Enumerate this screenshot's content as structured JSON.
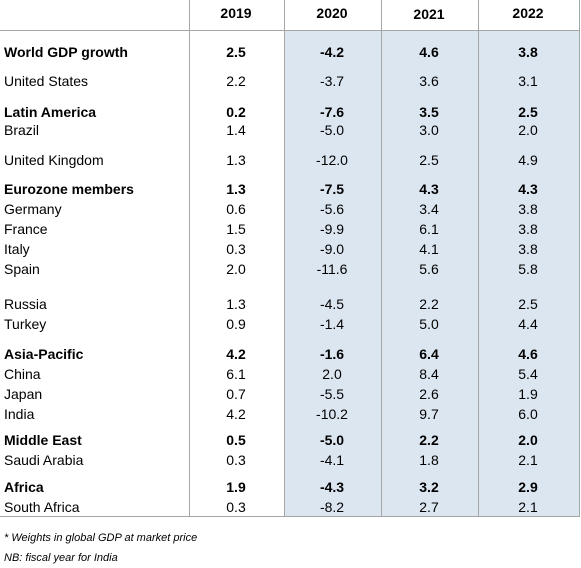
{
  "columns": [
    "2019",
    "2020",
    "2021",
    "2022"
  ],
  "rows": [
    {
      "label": "World GDP growth",
      "bold": true,
      "values": [
        "2.5",
        "-4.2",
        "4.6",
        "3.8"
      ]
    },
    {
      "label": "United States",
      "bold": false,
      "values": [
        "2.2",
        "-3.7",
        "3.6",
        "3.1"
      ]
    },
    {
      "label": "Latin America",
      "bold": true,
      "values": [
        "0.2",
        "-7.6",
        "3.5",
        "2.5"
      ]
    },
    {
      "label": "Brazil",
      "bold": false,
      "values": [
        "1.4",
        "-5.0",
        "3.0",
        "2.0"
      ]
    },
    {
      "label": "United Kingdom",
      "bold": false,
      "values": [
        "1.3",
        "-12.0",
        "2.5",
        "4.9"
      ]
    },
    {
      "label": "Eurozone members",
      "bold": true,
      "values": [
        "1.3",
        "-7.5",
        "4.3",
        "4.3"
      ]
    },
    {
      "label": "Germany",
      "bold": false,
      "values": [
        "0.6",
        "-5.6",
        "3.4",
        "3.8"
      ]
    },
    {
      "label": "France",
      "bold": false,
      "values": [
        "1.5",
        "-9.9",
        "6.1",
        "3.8"
      ]
    },
    {
      "label": "Italy",
      "bold": false,
      "values": [
        "0.3",
        "-9.0",
        "4.1",
        "3.8"
      ]
    },
    {
      "label": "Spain",
      "bold": false,
      "values": [
        "2.0",
        "-11.6",
        "5.6",
        "5.8"
      ]
    },
    {
      "label": "Russia",
      "bold": false,
      "values": [
        "1.3",
        "-4.5",
        "2.2",
        "2.5"
      ]
    },
    {
      "label": "Turkey",
      "bold": false,
      "values": [
        "0.9",
        "-1.4",
        "5.0",
        "4.4"
      ]
    },
    {
      "label": "Asia-Pacific",
      "bold": true,
      "values": [
        "4.2",
        "-1.6",
        "6.4",
        "4.6"
      ]
    },
    {
      "label": "China",
      "bold": false,
      "values": [
        "6.1",
        "2.0",
        "8.4",
        "5.4"
      ]
    },
    {
      "label": "Japan",
      "bold": false,
      "values": [
        "0.7",
        "-5.5",
        "2.6",
        "1.9"
      ]
    },
    {
      "label": "India",
      "bold": false,
      "values": [
        "4.2",
        "-10.2",
        "9.7",
        "6.0"
      ]
    },
    {
      "label": "Middle East",
      "bold": true,
      "values": [
        "0.5",
        "-5.0",
        "2.2",
        "2.0"
      ]
    },
    {
      "label": "Saudi Arabia",
      "bold": false,
      "values": [
        "0.3",
        "-4.1",
        "1.8",
        "2.1"
      ]
    },
    {
      "label": "Africa",
      "bold": true,
      "values": [
        "1.9",
        "-4.3",
        "3.2",
        "2.9"
      ]
    },
    {
      "label": "South Africa",
      "bold": false,
      "values": [
        "0.3",
        "-8.2",
        "2.7",
        "2.1"
      ]
    }
  ],
  "notes": [
    "* Weights in global GDP at market price",
    "NB: fiscal year for India"
  ],
  "colors": {
    "forecast_shade": "#dce6f1",
    "grid": "#a6a6a6"
  }
}
